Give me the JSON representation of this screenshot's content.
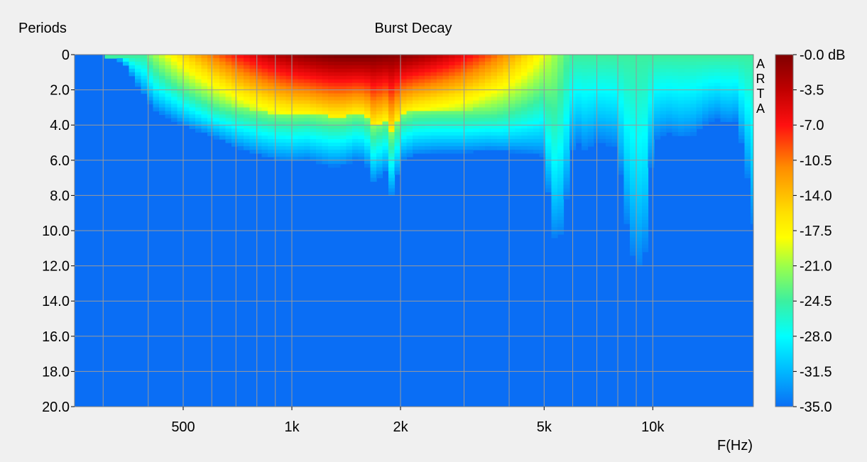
{
  "chart_data": {
    "type": "heatmap",
    "title": "Burst Decay",
    "ylabel": "Periods",
    "xlabel": "F(Hz)",
    "watermark": "ARTA",
    "x_scale": "log",
    "xlim": [
      250,
      19000
    ],
    "ylim": [
      0,
      20
    ],
    "y_inverted": true,
    "grid": true,
    "y_ticks": [
      0,
      2,
      4,
      6,
      8,
      10,
      12,
      14,
      16,
      18,
      20
    ],
    "y_tick_labels": [
      "0",
      "2.0",
      "4.0",
      "6.0",
      "8.0",
      "10.0",
      "12.0",
      "14.0",
      "16.0",
      "18.0",
      "20.0"
    ],
    "x_ticks": [
      500,
      1000,
      2000,
      5000,
      10000
    ],
    "x_tick_labels": [
      "500",
      "1k",
      "2k",
      "5k",
      "10k"
    ],
    "x_minor_grid": [
      300,
      400,
      600,
      700,
      800,
      900,
      3000,
      4000,
      6000,
      7000,
      8000,
      9000
    ],
    "colorbar": {
      "unit": "dB",
      "range": [
        -35.0,
        0.0
      ],
      "tick_values": [
        0.0,
        -3.5,
        -7.0,
        -10.5,
        -14.0,
        -17.5,
        -21.0,
        -24.5,
        -28.0,
        -31.5,
        -35.0
      ],
      "tick_labels": [
        "-0.0 dB",
        "-3.5",
        "-7.0",
        "-10.5",
        "-14.0",
        "-17.5",
        "-21.0",
        "-24.5",
        "-28.0",
        "-31.5",
        "-35.0"
      ]
    },
    "floor_color": "#0a6ef5",
    "decay_contour": {
      "description_units": "frequency Hz vs periods where level reaches floor",
      "freq": [
        250,
        300,
        340,
        380,
        420,
        500,
        600,
        700,
        800,
        900,
        1000,
        1100,
        1200,
        1300,
        1400,
        1500,
        1600,
        1700,
        1800,
        1900,
        2000,
        2200,
        2500,
        3000,
        3500,
        4000,
        4500,
        5000,
        5300,
        5500,
        5800,
        6000,
        6300,
        6500,
        7000,
        7500,
        8000,
        8500,
        9000,
        9500,
        10000,
        11000,
        12000,
        13000,
        14000,
        15000,
        16000,
        17000,
        18000,
        19000
      ],
      "floor_period": [
        0.0,
        0.0,
        0.3,
        2.0,
        3.2,
        4.0,
        4.6,
        5.2,
        5.6,
        5.9,
        6.0,
        5.9,
        6.1,
        6.3,
        6.2,
        5.9,
        6.0,
        7.5,
        6.3,
        8.2,
        6.0,
        5.6,
        5.5,
        5.5,
        5.4,
        5.5,
        5.6,
        5.8,
        10.5,
        11.0,
        8.0,
        5.5,
        5.0,
        5.6,
        5.0,
        5.2,
        5.4,
        10.2,
        12.8,
        11.8,
        5.0,
        4.5,
        4.8,
        4.6,
        4.0,
        3.6,
        4.0,
        3.8,
        6.0,
        10.0
      ]
    },
    "peak_level_note": "maximum near 1.3k-2k Hz at 0-1 periods (-0.0 dB)"
  }
}
